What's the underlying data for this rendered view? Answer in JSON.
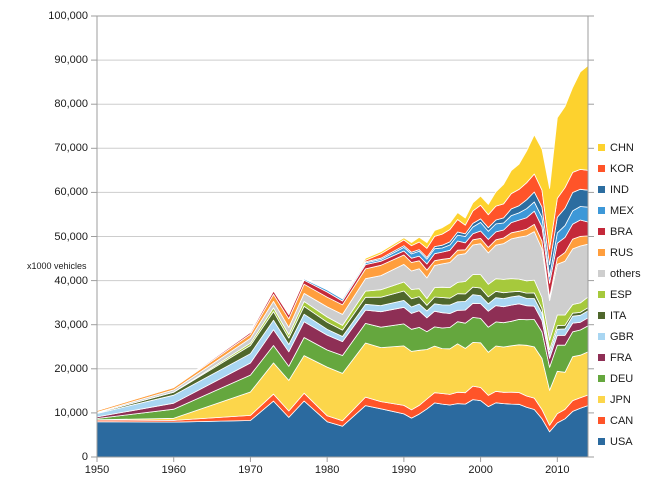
{
  "colors": {
    "background": "#ffffff",
    "grid": "#cdcdcd",
    "frame": "#9e9e9e",
    "text": "#1a1a1a",
    "band_separator": "#ffffff"
  },
  "chart_data": {
    "type": "area",
    "stacked": true,
    "title": "",
    "xlabel": "",
    "ylabel": "x1000 vehicles",
    "grid": true,
    "legend_position": "right",
    "ylim": [
      0,
      100000
    ],
    "y_tick_step": 10000,
    "y_tick_labels": [
      "0",
      "10,000",
      "20,000",
      "30,000",
      "40,000",
      "50,000",
      "60,000",
      "70,000",
      "80,000",
      "90,000",
      "100,000"
    ],
    "x_ticks": [
      1950,
      1960,
      1970,
      1980,
      1990,
      2000,
      2010
    ],
    "x_tick_labels": [
      "1950",
      "1960",
      "1970",
      "1980",
      "1990",
      "2000",
      "2010"
    ],
    "x_range": [
      1950,
      2014
    ],
    "x": [
      1950,
      1960,
      1970,
      1973,
      1975,
      1977,
      1980,
      1982,
      1985,
      1987,
      1990,
      1991,
      1992,
      1993,
      1994,
      1995,
      1996,
      1997,
      1998,
      1999,
      2000,
      2001,
      2002,
      2003,
      2004,
      2005,
      2006,
      2007,
      2008,
      2009,
      2010,
      2011,
      2012,
      2013,
      2014
    ],
    "legend_order_top_to_bottom": [
      "CHN",
      "KOR",
      "IND",
      "MEX",
      "BRA",
      "RUS",
      "others",
      "ESP",
      "ITA",
      "GBR",
      "FRA",
      "DEU",
      "JPN",
      "CAN",
      "USA"
    ],
    "series": [
      {
        "name": "USA",
        "color": "#2b6a9f",
        "values": [
          8006,
          7905,
          8284,
          12682,
          8987,
          12703,
          8010,
          6986,
          11653,
          10925,
          9783,
          8811,
          9731,
          10898,
          12263,
          11985,
          11799,
          12119,
          12003,
          13025,
          12800,
          11425,
          12280,
          12115,
          11989,
          11947,
          11264,
          10781,
          8672,
          5709,
          7743,
          8662,
          10336,
          11066,
          11661
        ]
      },
      {
        "name": "CAN",
        "color": "#ff5429",
        "values": [
          388,
          398,
          1160,
          1575,
          1442,
          1775,
          1324,
          1236,
          1933,
          1635,
          1928,
          1888,
          1961,
          2246,
          2321,
          2408,
          2397,
          2571,
          2568,
          3059,
          2962,
          2533,
          2629,
          2553,
          2711,
          2688,
          2572,
          2578,
          2082,
          1490,
          2068,
          2135,
          2463,
          2380,
          2394
        ]
      },
      {
        "name": "JPN",
        "color": "#fcd64b",
        "values": [
          32,
          482,
          5289,
          7083,
          6942,
          8515,
          11043,
          10732,
          12271,
          12249,
          13487,
          13245,
          12499,
          11228,
          10554,
          10196,
          10346,
          10975,
          10050,
          9895,
          10141,
          9777,
          10257,
          10286,
          10512,
          10800,
          11484,
          11596,
          11576,
          7934,
          9629,
          8399,
          9943,
          9630,
          9775
        ]
      },
      {
        "name": "DEU",
        "color": "#65a73e",
        "values": [
          306,
          2055,
          3842,
          3949,
          3186,
          4112,
          3879,
          4063,
          4446,
          4634,
          4977,
          5014,
          5194,
          4032,
          4356,
          4667,
          4843,
          5023,
          5727,
          5687,
          5527,
          5692,
          5469,
          5507,
          5570,
          5758,
          5820,
          6213,
          6046,
          5210,
          5906,
          6147,
          5649,
          5718,
          5908
        ]
      },
      {
        "name": "FRA",
        "color": "#8e2f55",
        "values": [
          357,
          1369,
          2750,
          3569,
          3300,
          3560,
          3378,
          3149,
          3016,
          3494,
          3769,
          3611,
          3768,
          3156,
          3558,
          3475,
          3148,
          2580,
          2954,
          3180,
          3348,
          3628,
          3693,
          3620,
          3666,
          3549,
          3169,
          3016,
          2569,
          2048,
          2228,
          2243,
          1968,
          1740,
          1821
        ]
      },
      {
        "name": "GBR",
        "color": "#a9d6f2",
        "values": [
          784,
          1811,
          2098,
          2164,
          1648,
          1713,
          1313,
          1156,
          1314,
          1389,
          1566,
          1454,
          1540,
          1569,
          1695,
          1765,
          1924,
          1936,
          1980,
          1974,
          1814,
          1685,
          1823,
          1846,
          1857,
          1803,
          1648,
          1750,
          1650,
          1090,
          1393,
          1464,
          1577,
          1598,
          1599
        ]
      },
      {
        "name": "ITA",
        "color": "#4f672c",
        "values": [
          128,
          645,
          1854,
          1958,
          1459,
          1797,
          1612,
          1453,
          1573,
          1913,
          2121,
          1878,
          1686,
          1277,
          1534,
          1667,
          1545,
          1828,
          1693,
          1704,
          1738,
          1580,
          1427,
          1322,
          1142,
          1038,
          1212,
          1284,
          1024,
          843,
          838,
          790,
          672,
          658,
          698
        ]
      },
      {
        "name": "ESP",
        "color": "#a6c93c",
        "values": [
          3,
          58,
          536,
          822,
          814,
          1118,
          1182,
          1070,
          1418,
          1704,
          2053,
          2082,
          1790,
          1506,
          2142,
          2334,
          2412,
          2562,
          2826,
          2852,
          3033,
          2850,
          2855,
          3030,
          3012,
          2753,
          2777,
          2890,
          2542,
          2170,
          2388,
          2354,
          1979,
          2163,
          2403
        ]
      },
      {
        "name": "others",
        "color": "#cecece",
        "values": [
          150,
          500,
          1100,
          1500,
          1600,
          1800,
          2300,
          2500,
          2800,
          3200,
          4000,
          4200,
          4500,
          4700,
          5000,
          5300,
          5700,
          6200,
          6300,
          6700,
          7000,
          7100,
          7600,
          8100,
          9000,
          9500,
          10200,
          11000,
          11000,
          9000,
          11500,
          12200,
          12600,
          12900,
          12000
        ]
      },
      {
        "name": "RUS",
        "color": "#ff9e3d",
        "values": [
          363,
          524,
          916,
          1602,
          1964,
          2088,
          2199,
          2173,
          2232,
          2332,
          2120,
          1930,
          1823,
          1768,
          1098,
          1027,
          933,
          1108,
          891,
          1168,
          1206,
          1251,
          1220,
          1279,
          1386,
          1355,
          1508,
          1660,
          1790,
          725,
          1403,
          1990,
          2233,
          2175,
          1887
        ]
      },
      {
        "name": "BRA",
        "color": "#c4293a",
        "values": [
          0,
          133,
          416,
          750,
          930,
          921,
          1165,
          859,
          967,
          920,
          914,
          960,
          1074,
          1391,
          1581,
          1629,
          1813,
          2070,
          1586,
          1357,
          1682,
          1817,
          1792,
          1827,
          2317,
          2531,
          2611,
          2977,
          3216,
          3183,
          3382,
          3408,
          3403,
          3712,
          3146
        ]
      },
      {
        "name": "MEX",
        "color": "#3d98d8",
        "values": [
          22,
          50,
          193,
          286,
          361,
          281,
          490,
          473,
          398,
          395,
          821,
          989,
          1083,
          1080,
          1122,
          935,
          1211,
          1338,
          1427,
          1550,
          1936,
          1841,
          1805,
          1575,
          1577,
          1624,
          2046,
          2095,
          2168,
          1561,
          2342,
          2681,
          3002,
          3055,
          3365
        ]
      },
      {
        "name": "IND",
        "color": "#2c6da0",
        "values": [
          15,
          55,
          76,
          85,
          95,
          100,
          113,
          150,
          230,
          280,
          364,
          360,
          383,
          420,
          480,
          636,
          696,
          717,
          603,
          818,
          801,
          815,
          895,
          1161,
          1511,
          1639,
          2020,
          2254,
          2332,
          2642,
          3557,
          3927,
          4145,
          3898,
          3840
        ]
      },
      {
        "name": "KOR",
        "color": "#ff5429",
        "values": [
          0,
          0,
          29,
          26,
          37,
          85,
          123,
          163,
          378,
          980,
          1322,
          1498,
          1730,
          2050,
          2312,
          2526,
          2813,
          2818,
          1954,
          2843,
          3115,
          2946,
          3148,
          3178,
          3469,
          3699,
          3840,
          4086,
          3827,
          3513,
          4272,
          4657,
          4562,
          4521,
          4525
        ]
      },
      {
        "name": "CHN",
        "color": "#fdd22e",
        "values": [
          0,
          23,
          87,
          116,
          140,
          125,
          222,
          196,
          437,
          473,
          470,
          709,
          1062,
          1297,
          1353,
          1453,
          1475,
          1580,
          1628,
          1830,
          2069,
          2334,
          3251,
          4444,
          5235,
          5708,
          7189,
          8882,
          9299,
          13791,
          18265,
          18419,
          19272,
          22117,
          23723
        ]
      }
    ]
  }
}
